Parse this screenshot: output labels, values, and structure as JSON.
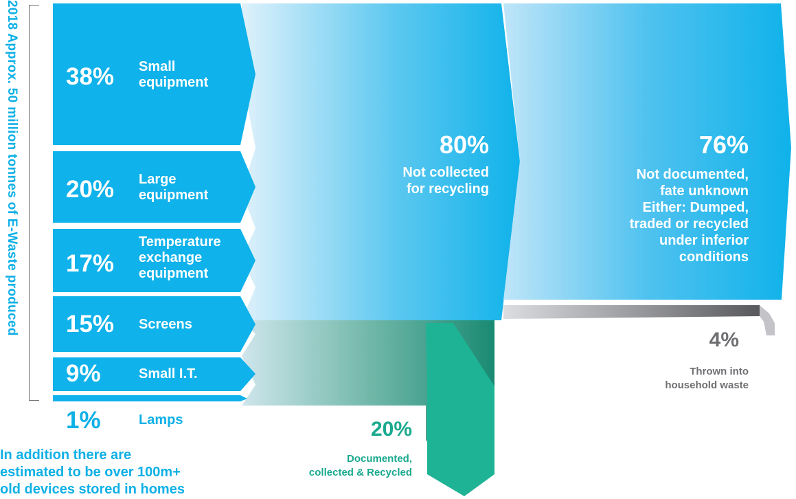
{
  "title": "2018 Approx. 50 million tonnes of E-Waste produced",
  "categories": [
    {
      "percent": "38%",
      "label_lines": [
        "Small",
        "equipment"
      ]
    },
    {
      "percent": "20%",
      "label_lines": [
        "Large",
        "equipment"
      ]
    },
    {
      "percent": "17%",
      "label_lines": [
        "Temperature",
        "exchange",
        "equipment"
      ]
    },
    {
      "percent": "15%",
      "label_lines": [
        "Screens"
      ]
    },
    {
      "percent": "9%",
      "label_lines": [
        "Small I.T."
      ]
    },
    {
      "percent": "1%",
      "label_lines": [
        "Lamps"
      ]
    }
  ],
  "flows": {
    "not_collected": {
      "percent": "80%",
      "label_lines": [
        "Not collected",
        "for recycling"
      ]
    },
    "not_documented": {
      "percent": "76%",
      "label_lines": [
        "Not documented,",
        "fate unknown",
        "Either: Dumped,",
        "traded or recycled",
        "under inferior",
        "conditions"
      ]
    },
    "household_waste": {
      "percent": "4%",
      "label_lines": [
        "Thrown into",
        "household waste"
      ]
    },
    "recycled": {
      "percent": "20%",
      "label_lines": [
        "Documented,",
        "collected & Recycled"
      ]
    }
  },
  "footnote_lines": [
    "In addition there are",
    "estimated to be over 100m+",
    "old devices stored in homes"
  ],
  "colors": {
    "blue": "#0fb0e6",
    "teal": "#1aa98e",
    "grey": "#6f6f73",
    "light_blue": "#d8effb"
  }
}
